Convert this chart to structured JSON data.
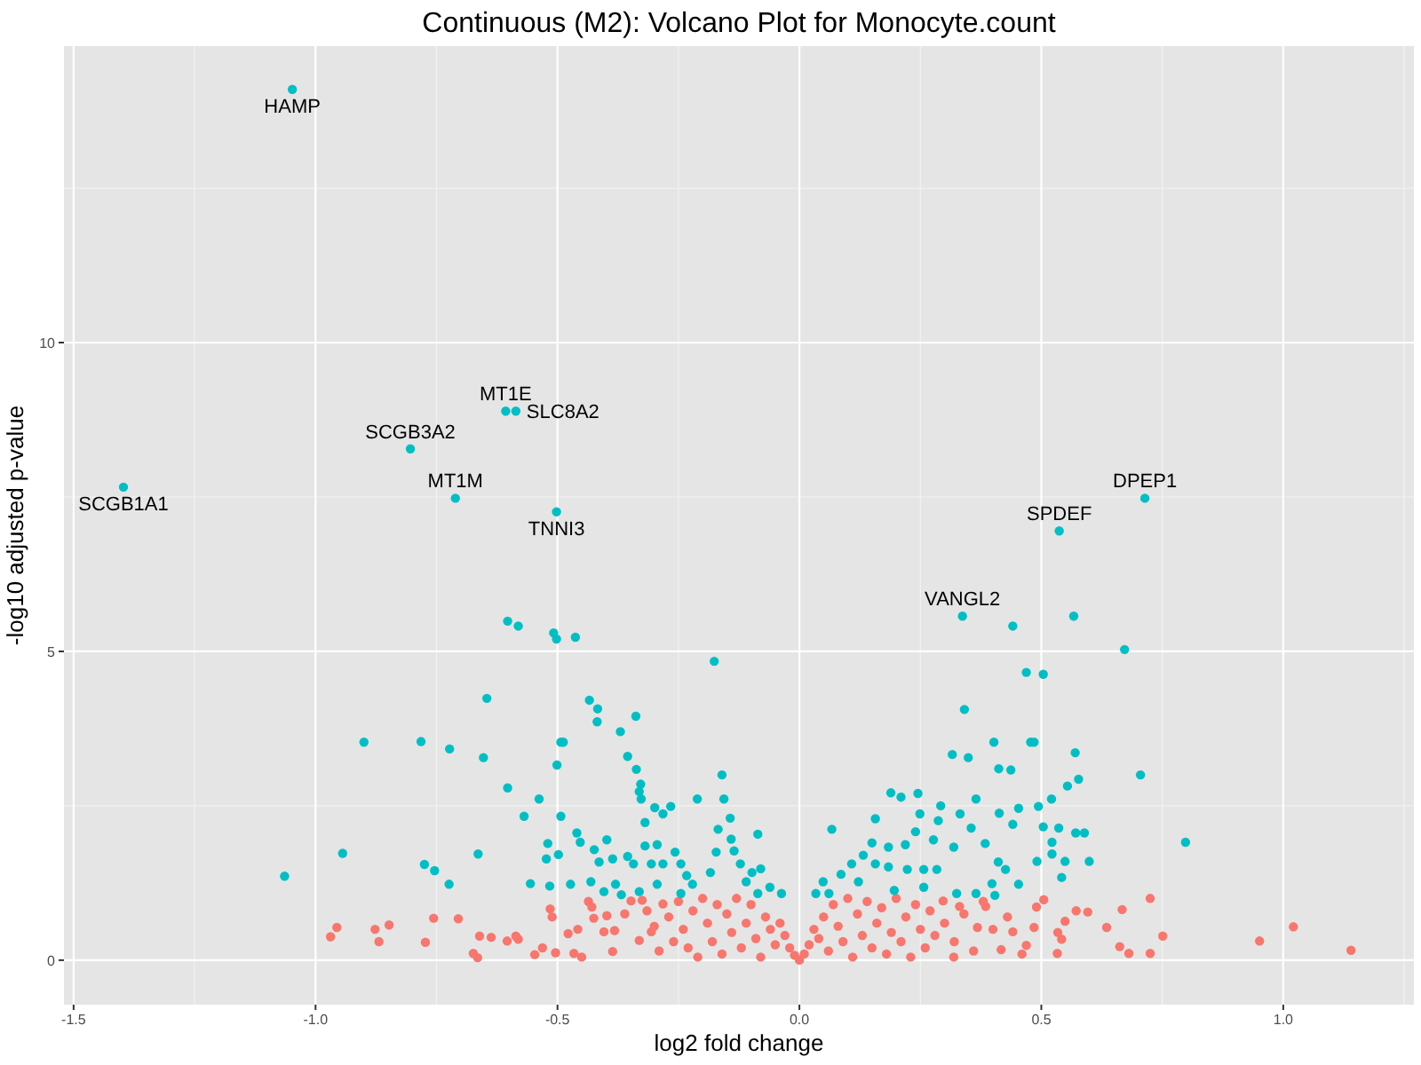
{
  "chart_data": {
    "type": "scatter",
    "title": "Continuous (M2): Volcano Plot for Monocyte.count",
    "xlabel": "log2 fold change",
    "ylabel": "-log10 adjusted p-value",
    "xlim": [
      -1.52,
      1.27
    ],
    "ylim": [
      -0.72,
      14.8
    ],
    "xticks": [
      {
        "value": -1.5,
        "label": "-1.5"
      },
      {
        "value": -1,
        "label": "-1.0"
      },
      {
        "value": -0.5,
        "label": "-0.5"
      },
      {
        "value": 0,
        "label": "0.0"
      },
      {
        "value": 0.5,
        "label": "0.5"
      },
      {
        "value": 1,
        "label": "1.0"
      }
    ],
    "yticks": [
      0,
      5,
      10
    ],
    "grid": true,
    "marker": "circle",
    "series": [
      {
        "color": "#f8766d",
        "x": [
          -0.969,
          -0.956,
          -0.877,
          -0.869,
          -0.848,
          -0.773,
          -0.756,
          -0.705,
          -0.674,
          -0.665,
          -0.661,
          -0.637,
          -0.604,
          -0.586,
          -0.581,
          -0.547,
          -0.531,
          -0.515,
          -0.511,
          -0.504,
          -0.478,
          -0.466,
          -0.458,
          -0.45,
          -0.436,
          -0.429,
          -0.425,
          -0.404,
          -0.398,
          -0.386,
          -0.382,
          -0.361,
          -0.348,
          -0.331,
          -0.325,
          -0.315,
          -0.306,
          -0.282,
          -0.3,
          -0.29,
          -0.27,
          -0.26,
          -0.25,
          -0.24,
          -0.23,
          -0.22,
          -0.21,
          -0.2,
          -0.19,
          -0.18,
          -0.17,
          -0.16,
          -0.15,
          -0.14,
          -0.13,
          -0.12,
          -0.11,
          -0.1,
          -0.09,
          -0.08,
          -0.07,
          -0.06,
          -0.05,
          -0.04,
          -0.03,
          -0.02,
          -0.01,
          0,
          0.01,
          0.02,
          0.03,
          0.04,
          0.05,
          0.06,
          0.07,
          0.08,
          0.09,
          0.1,
          0.11,
          0.12,
          0.13,
          0.14,
          0.15,
          0.16,
          0.17,
          0.18,
          0.19,
          0.2,
          0.21,
          0.22,
          0.23,
          0.24,
          0.25,
          0.26,
          0.27,
          0.28,
          0.297,
          0.3,
          0.319,
          0.32,
          0.331,
          0.34,
          0.36,
          0.368,
          0.38,
          0.385,
          0.4,
          0.417,
          0.43,
          0.441,
          0.46,
          0.469,
          0.485,
          0.49,
          0.505,
          0.533,
          0.534,
          0.542,
          0.549,
          0.572,
          0.596,
          0.635,
          0.662,
          0.667,
          0.681,
          0.725,
          0.725,
          0.751,
          0.951,
          1.021,
          1.14
        ],
        "values": [
          0.38,
          0.53,
          0.5,
          0.3,
          0.57,
          0.29,
          0.68,
          0.67,
          0.11,
          0.04,
          0.39,
          0.37,
          0.31,
          0.39,
          0.34,
          0.09,
          0.2,
          0.83,
          0.7,
          0.12,
          0.43,
          0.11,
          0.5,
          0.05,
          0.95,
          0.86,
          0.68,
          0.46,
          0.72,
          0.14,
          0.48,
          0.75,
          0.96,
          0.32,
          0.97,
          0.8,
          0.46,
          0.91,
          0.55,
          0.15,
          0.7,
          0.3,
          0.95,
          0.5,
          0.2,
          0.8,
          0.05,
          1,
          0.6,
          0.3,
          0.9,
          0.1,
          0.75,
          0.45,
          1,
          0.2,
          0.6,
          0.9,
          0.35,
          0.05,
          0.7,
          0.5,
          0.25,
          0.6,
          0.4,
          0.2,
          0.08,
          0,
          0.1,
          0.25,
          0.5,
          0.35,
          0.7,
          0.15,
          0.9,
          0.55,
          0.3,
          1,
          0.05,
          0.75,
          0.4,
          0.95,
          0.2,
          0.6,
          0.85,
          0.1,
          0.45,
          1,
          0.3,
          0.7,
          0.05,
          0.9,
          0.5,
          0.2,
          0.8,
          0.4,
          0.96,
          0.6,
          0.05,
          0.3,
          0.87,
          0.75,
          0.15,
          0.53,
          0.95,
          0.87,
          0.5,
          0.17,
          0.7,
          0.46,
          0.1,
          0.24,
          0.53,
          0.86,
          0.98,
          0.11,
          0.45,
          0.34,
          0.63,
          0.8,
          0.78,
          0.53,
          0.22,
          0.82,
          0.11,
          1,
          0.11,
          0.39,
          0.31,
          0.54,
          0.16
        ]
      },
      {
        "color": "#00bfc4",
        "x": [
          -1.397,
          -1.064,
          -1.048,
          -0.944,
          -0.9,
          -0.804,
          -0.782,
          -0.775,
          -0.754,
          -0.724,
          -0.723,
          -0.711,
          -0.664,
          -0.653,
          -0.646,
          -0.607,
          -0.603,
          -0.603,
          -0.586,
          -0.581,
          -0.569,
          -0.556,
          -0.538,
          -0.523,
          -0.52,
          -0.516,
          -0.508,
          -0.502,
          -0.502,
          -0.501,
          -0.498,
          -0.493,
          -0.493,
          -0.488,
          -0.473,
          -0.463,
          -0.46,
          -0.453,
          -0.434,
          -0.431,
          -0.424,
          -0.418,
          -0.417,
          -0.414,
          -0.404,
          -0.398,
          -0.386,
          -0.38,
          -0.37,
          -0.368,
          -0.355,
          -0.355,
          -0.343,
          -0.338,
          -0.337,
          -0.331,
          -0.331,
          -0.328,
          -0.327,
          -0.319,
          -0.319,
          -0.306,
          -0.299,
          -0.294,
          -0.294,
          -0.282,
          -0.282,
          -0.266,
          -0.257,
          -0.245,
          -0.245,
          -0.233,
          -0.221,
          -0.211,
          -0.184,
          -0.176,
          -0.172,
          -0.168,
          -0.16,
          -0.156,
          -0.143,
          -0.141,
          -0.135,
          -0.122,
          -0.11,
          -0.098,
          -0.086,
          -0.086,
          -0.08,
          -0.061,
          -0.037,
          0.034,
          0.049,
          0.061,
          0.067,
          0.086,
          0.108,
          0.122,
          0.132,
          0.15,
          0.157,
          0.157,
          0.184,
          0.184,
          0.189,
          0.196,
          0.21,
          0.219,
          0.223,
          0.24,
          0.245,
          0.249,
          0.257,
          0.257,
          0.277,
          0.284,
          0.287,
          0.292,
          0.316,
          0.319,
          0.325,
          0.332,
          0.337,
          0.341,
          0.349,
          0.355,
          0.365,
          0.365,
          0.384,
          0.398,
          0.402,
          0.404,
          0.411,
          0.412,
          0.413,
          0.426,
          0.437,
          0.441,
          0.441,
          0.453,
          0.453,
          0.469,
          0.478,
          0.485,
          0.491,
          0.494,
          0.504,
          0.504,
          0.521,
          0.522,
          0.522,
          0.536,
          0.537,
          0.542,
          0.549,
          0.554,
          0.567,
          0.57,
          0.571,
          0.577,
          0.589,
          0.599,
          0.672,
          0.705,
          0.714,
          0.798
        ],
        "values": [
          7.66,
          1.36,
          14.1,
          1.73,
          3.53,
          8.28,
          3.54,
          1.55,
          1.45,
          1.23,
          3.42,
          7.48,
          1.72,
          3.28,
          4.24,
          8.89,
          5.49,
          2.79,
          8.89,
          5.41,
          2.33,
          1.24,
          2.61,
          1.64,
          1.89,
          1.2,
          5.3,
          5.2,
          7.26,
          3.16,
          1.71,
          3.53,
          2.33,
          3.53,
          1.23,
          5.23,
          2.06,
          1.91,
          4.21,
          1.27,
          1.79,
          3.86,
          4.07,
          1.59,
          1.11,
          1.95,
          1.64,
          1.23,
          3.7,
          1.06,
          3.3,
          1.68,
          1.56,
          3.95,
          3.09,
          2.73,
          1.11,
          2.85,
          2.61,
          2.23,
          1.85,
          1.56,
          2.47,
          1.87,
          1.23,
          2.37,
          1.56,
          2.49,
          1.75,
          1.56,
          1.08,
          1.37,
          1.23,
          2.61,
          1.42,
          4.84,
          1.75,
          2.12,
          3,
          2.61,
          2.3,
          1.96,
          1.77,
          1.56,
          1.27,
          1.42,
          2.04,
          1.08,
          1.48,
          1.18,
          1.08,
          1.08,
          1.27,
          1.08,
          2.12,
          1.39,
          1.56,
          1.27,
          1.7,
          1.9,
          2.29,
          1.56,
          1.83,
          1.51,
          2.71,
          1.13,
          2.64,
          1.87,
          1.47,
          2.08,
          2.7,
          2.37,
          1.47,
          1.18,
          1.95,
          1.47,
          2.26,
          2.5,
          3.33,
          1.83,
          1.08,
          2.37,
          5.57,
          4.06,
          3.28,
          2.14,
          2.61,
          1.08,
          1.89,
          1.24,
          3.53,
          1.05,
          1.59,
          3.1,
          2.38,
          1.47,
          3.08,
          5.41,
          2.2,
          2.46,
          1.23,
          4.66,
          3.53,
          3.53,
          1.6,
          2.49,
          4.63,
          2.16,
          2.61,
          1.91,
          1.72,
          2.14,
          6.95,
          1.34,
          1.6,
          2.82,
          5.57,
          3.36,
          2.06,
          2.93,
          2.06,
          1.6,
          5.03,
          3,
          7.48,
          1.91
        ]
      }
    ],
    "annotations": [
      {
        "text": "HAMP",
        "x": -1.048,
        "y": 14.1
      },
      {
        "text": "SCGB1A1",
        "x": -1.397,
        "y": 7.66
      },
      {
        "text": "SCGB3A2",
        "x": -0.804,
        "y": 8.28
      },
      {
        "text": "MT1E",
        "x": -0.607,
        "y": 8.89
      },
      {
        "text": "SLC8A2",
        "x": -0.586,
        "y": 8.89
      },
      {
        "text": "MT1M",
        "x": -0.711,
        "y": 7.48
      },
      {
        "text": "TNNI3",
        "x": -0.502,
        "y": 7.26
      },
      {
        "text": "DPEP1",
        "x": 0.714,
        "y": 7.48
      },
      {
        "text": "SPDEF",
        "x": 0.537,
        "y": 6.95
      },
      {
        "text": "VANGL2",
        "x": 0.337,
        "y": 5.57
      }
    ]
  }
}
